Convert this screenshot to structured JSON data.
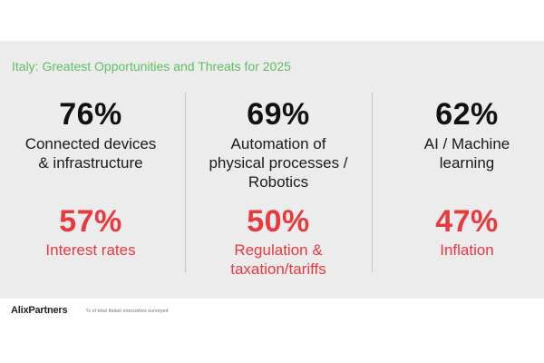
{
  "title": "Italy: Greatest Opportunities and Threats for 2025",
  "columns": [
    {
      "opportunity": {
        "value": "76%",
        "label_lines": [
          "Connected devices",
          "& infrastructure"
        ]
      },
      "threat": {
        "value": "57%",
        "label_lines": [
          "Interest rates"
        ]
      }
    },
    {
      "opportunity": {
        "value": "69%",
        "label_lines": [
          "Automation of",
          "physical processes /",
          "Robotics"
        ]
      },
      "threat": {
        "value": "50%",
        "label_lines": [
          "Regulation &",
          "taxation/tariffs"
        ]
      }
    },
    {
      "opportunity": {
        "value": "62%",
        "label_lines": [
          "AI / Machine",
          "learning"
        ]
      },
      "threat": {
        "value": "47%",
        "label_lines": [
          "Inflation"
        ]
      }
    }
  ],
  "footer": {
    "logo_text": "AlixPartners",
    "note": "% of total Italian executives surveyed"
  },
  "colors": {
    "title_green": "#5fbf62",
    "threat_red": "#e8393f",
    "panel_bg": "#ececec",
    "text_dark": "#111111"
  }
}
